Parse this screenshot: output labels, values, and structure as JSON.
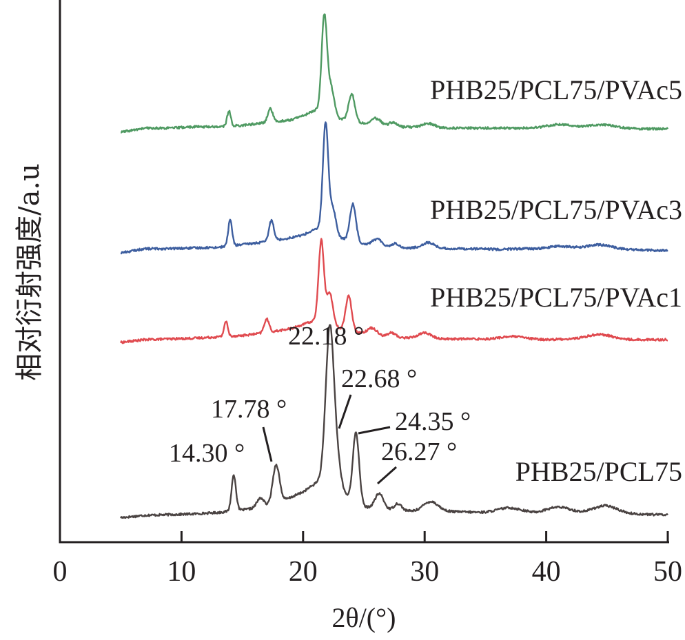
{
  "chart_data": {
    "type": "line",
    "xlabel": "2θ/(°)",
    "ylabel": "相对衍射强度/a.u",
    "xlim": [
      0,
      50
    ],
    "xticks": [
      "0",
      "10",
      "20",
      "30",
      "40",
      "50"
    ],
    "grid": false,
    "y_axis_ticks": false,
    "series": [
      {
        "name": "PHB25/PCL75",
        "color": "#4a4342",
        "offset": 0,
        "baseline": [
          [
            5,
            0.6
          ],
          [
            7,
            4
          ],
          [
            9,
            5
          ],
          [
            11,
            6
          ],
          [
            13,
            8
          ],
          [
            15,
            12
          ],
          [
            17,
            16
          ],
          [
            19,
            30
          ],
          [
            20,
            38
          ],
          [
            21,
            50
          ],
          [
            21.7,
            60
          ],
          [
            23,
            40
          ],
          [
            24,
            25
          ],
          [
            25,
            16
          ],
          [
            27,
            12
          ],
          [
            29,
            10
          ],
          [
            31,
            10
          ],
          [
            33,
            9
          ],
          [
            35,
            8
          ],
          [
            37,
            9
          ],
          [
            39,
            7
          ],
          [
            41,
            8
          ],
          [
            43,
            7
          ],
          [
            45,
            9
          ],
          [
            47,
            6
          ],
          [
            49,
            5
          ],
          [
            50,
            5
          ]
        ],
        "peaks": [
          [
            14.3,
            52,
            0.18
          ],
          [
            16.5,
            14,
            0.3
          ],
          [
            17.78,
            56,
            0.28
          ],
          [
            22.18,
            208,
            0.32
          ],
          [
            22.68,
            52,
            0.35
          ],
          [
            24.35,
            102,
            0.26
          ],
          [
            26.27,
            22,
            0.35
          ],
          [
            27.8,
            10,
            0.3
          ],
          [
            30.5,
            14,
            0.6
          ],
          [
            37,
            6,
            1
          ],
          [
            41,
            8,
            1
          ],
          [
            44.8,
            9,
            1
          ]
        ]
      },
      {
        "name": "PHB25/PCL75/PVAc1",
        "color": "#e04a4f",
        "offset": 255,
        "baseline": [
          [
            5,
            0
          ],
          [
            7,
            4
          ],
          [
            9,
            5
          ],
          [
            11,
            6
          ],
          [
            13,
            8
          ],
          [
            15,
            10
          ],
          [
            17,
            14
          ],
          [
            19,
            20
          ],
          [
            20,
            26
          ],
          [
            21,
            32
          ],
          [
            22,
            28
          ],
          [
            23,
            20
          ],
          [
            24,
            16
          ],
          [
            26,
            10
          ],
          [
            28,
            7
          ],
          [
            30,
            6
          ],
          [
            32,
            5
          ],
          [
            34,
            5
          ],
          [
            36,
            4
          ],
          [
            38,
            5
          ],
          [
            40,
            4
          ],
          [
            42,
            5
          ],
          [
            44,
            6
          ],
          [
            46,
            4
          ],
          [
            48,
            4
          ],
          [
            50,
            4
          ]
        ],
        "peaks": [
          [
            13.65,
            22,
            0.15
          ],
          [
            17.0,
            20,
            0.2
          ],
          [
            21.5,
            118,
            0.22
          ],
          [
            22.2,
            45,
            0.25
          ],
          [
            23.75,
            50,
            0.25
          ],
          [
            25.7,
            10,
            0.4
          ],
          [
            27.3,
            6,
            0.3
          ],
          [
            30.0,
            8,
            0.5
          ],
          [
            37,
            4,
            1
          ],
          [
            44.5,
            6,
            1
          ]
        ]
      },
      {
        "name": "PHB25/PCL75/PVAc3",
        "color": "#3d5e9f",
        "offset": 385,
        "baseline": [
          [
            5,
            0
          ],
          [
            7,
            6
          ],
          [
            9,
            6
          ],
          [
            11,
            7
          ],
          [
            13,
            8
          ],
          [
            15,
            12
          ],
          [
            17,
            16
          ],
          [
            19,
            22
          ],
          [
            20,
            26
          ],
          [
            21,
            34
          ],
          [
            21.8,
            38
          ],
          [
            23,
            22
          ],
          [
            24,
            16
          ],
          [
            26,
            10
          ],
          [
            28,
            7
          ],
          [
            30,
            7
          ],
          [
            32,
            6
          ],
          [
            34,
            6
          ],
          [
            36,
            5
          ],
          [
            38,
            6
          ],
          [
            40,
            5
          ],
          [
            42,
            6
          ],
          [
            44,
            7
          ],
          [
            46,
            5
          ],
          [
            48,
            4
          ],
          [
            50,
            3
          ]
        ],
        "peaks": [
          [
            14.0,
            38,
            0.16
          ],
          [
            17.4,
            30,
            0.2
          ],
          [
            21.85,
            150,
            0.22
          ],
          [
            22.45,
            35,
            0.25
          ],
          [
            24.1,
            55,
            0.25
          ],
          [
            26.1,
            10,
            0.4
          ],
          [
            27.6,
            6,
            0.3
          ],
          [
            30.3,
            8,
            0.5
          ],
          [
            41,
            4,
            1
          ],
          [
            44.5,
            5,
            1
          ]
        ]
      },
      {
        "name": "PHB25/PCL75/PVAc5",
        "color": "#4f9a62",
        "offset": 560,
        "baseline": [
          [
            5,
            0
          ],
          [
            7,
            6
          ],
          [
            9,
            6
          ],
          [
            11,
            8
          ],
          [
            13,
            8
          ],
          [
            15,
            10
          ],
          [
            17,
            14
          ],
          [
            19,
            18
          ],
          [
            20,
            24
          ],
          [
            21,
            32
          ],
          [
            21.7,
            36
          ],
          [
            23,
            20
          ],
          [
            24,
            16
          ],
          [
            26,
            10
          ],
          [
            28,
            8
          ],
          [
            30,
            7
          ],
          [
            32,
            6
          ],
          [
            34,
            6
          ],
          [
            36,
            6
          ],
          [
            38,
            6
          ],
          [
            40,
            6
          ],
          [
            42,
            7
          ],
          [
            44,
            6
          ],
          [
            46,
            6
          ],
          [
            48,
            5
          ],
          [
            50,
            5
          ]
        ],
        "peaks": [
          [
            13.9,
            22,
            0.15
          ],
          [
            17.3,
            20,
            0.2
          ],
          [
            21.75,
            134,
            0.22
          ],
          [
            22.3,
            36,
            0.25
          ],
          [
            24.0,
            40,
            0.25
          ],
          [
            26.0,
            10,
            0.4
          ],
          [
            27.4,
            6,
            0.3
          ],
          [
            30.3,
            6,
            0.5
          ],
          [
            41,
            5,
            1
          ],
          [
            44.5,
            5,
            1
          ]
        ]
      }
    ],
    "annotations": [
      {
        "text": "14.30 °",
        "x": 14.3
      },
      {
        "text": "17.78 °",
        "x": 17.78
      },
      {
        "text": "22.18 °",
        "x": 22.18
      },
      {
        "text": "22.68 °",
        "x": 22.68
      },
      {
        "text": "24.35 °",
        "x": 24.35
      },
      {
        "text": "26.27 °",
        "x": 26.27
      }
    ]
  }
}
